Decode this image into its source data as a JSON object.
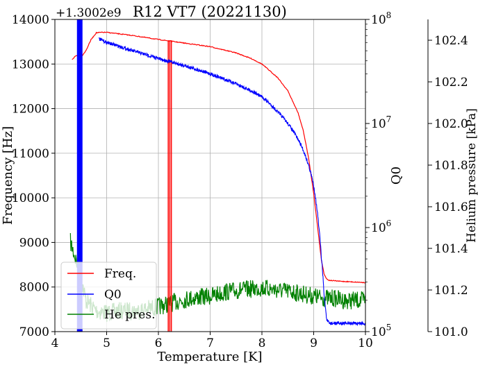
{
  "chart_data": {
    "type": "line",
    "title": "R12 VT7 (20221130)",
    "offset_text": "+1.3002e9",
    "xlabel": "Temperature [K]",
    "xlim": [
      4,
      10
    ],
    "xticks": [
      4,
      5,
      6,
      7,
      8,
      9,
      10
    ],
    "y_left": {
      "label": "Frequency [Hz]",
      "lim": [
        7000,
        14000
      ],
      "ticks": [
        7000,
        8000,
        9000,
        10000,
        11000,
        12000,
        13000,
        14000
      ]
    },
    "y_right1": {
      "label": "Q0",
      "scale": "log",
      "lim": [
        100000,
        100000000
      ],
      "ticks": [
        {
          "value": 100000,
          "base": "10",
          "exp": "5"
        },
        {
          "value": 1000000,
          "base": "10",
          "exp": "6"
        },
        {
          "value": 10000000,
          "base": "10",
          "exp": "7"
        },
        {
          "value": 100000000,
          "base": "10",
          "exp": "8"
        }
      ]
    },
    "y_right2": {
      "label": "Helium pressure [kPa]",
      "lim": [
        101.0,
        102.5
      ],
      "ticks": [
        "101.0",
        "101.2",
        "101.4",
        "101.6",
        "101.8",
        "102.0",
        "102.2",
        "102.4"
      ]
    },
    "grid": true,
    "legend_position": "lower-left",
    "series": [
      {
        "name": "Freq.",
        "axis": "left",
        "color": "#ff0000",
        "x": [
          4.33,
          4.4,
          4.45,
          4.5,
          4.6,
          4.7,
          4.8,
          4.9,
          5.0,
          5.5,
          6.0,
          6.5,
          7.0,
          7.5,
          7.8,
          8.0,
          8.3,
          8.5,
          8.7,
          8.8,
          8.9,
          9.0,
          9.05,
          9.1,
          9.15,
          9.2,
          9.25,
          9.3,
          9.5,
          10.0
        ],
        "y": [
          13100,
          13180,
          13200,
          13150,
          13300,
          13550,
          13700,
          13710,
          13710,
          13640,
          13550,
          13470,
          13390,
          13250,
          13120,
          13000,
          12700,
          12400,
          11900,
          11500,
          10900,
          10100,
          9600,
          9100,
          8600,
          8300,
          8180,
          8150,
          8130,
          8100
        ]
      },
      {
        "name": "Q0",
        "axis": "right1",
        "color": "#0000ff",
        "x": [
          4.85,
          5.0,
          5.5,
          6.0,
          6.5,
          7.0,
          7.5,
          7.8,
          8.0,
          8.3,
          8.5,
          8.7,
          8.8,
          8.9,
          9.0,
          9.05,
          9.1,
          9.15,
          9.2,
          9.25,
          9.3,
          9.5,
          10.0
        ],
        "y": [
          65000000,
          60000000,
          50000000,
          42000000,
          36000000,
          30000000,
          24000000,
          20500000,
          18000000,
          13000000,
          10000000,
          7000000,
          5500000,
          4000000,
          2500000,
          1700000,
          1000000,
          500000,
          220000,
          130000,
          120000,
          120000,
          120000
        ]
      },
      {
        "name": "He pres.",
        "axis": "right2",
        "color": "#008000",
        "x": [
          4.3,
          4.4,
          4.5,
          4.6,
          4.8,
          5.0,
          5.3,
          5.6,
          6.0,
          6.3,
          6.6,
          7.0,
          7.3,
          7.6,
          8.0,
          8.3,
          8.6,
          9.0,
          9.2,
          9.4,
          9.6,
          9.8,
          10.0
        ],
        "y": [
          101.43,
          101.35,
          101.26,
          101.15,
          101.1,
          101.09,
          101.1,
          101.1,
          101.12,
          101.14,
          101.16,
          101.17,
          101.19,
          101.2,
          101.21,
          101.2,
          101.19,
          101.17,
          101.16,
          101.16,
          101.15,
          101.15,
          101.15
        ]
      }
    ],
    "vertical_spikes": [
      {
        "series": "Q0",
        "x": [
          4.44,
          4.46,
          4.48,
          4.5,
          4.52
        ]
      },
      {
        "series": "Freq.",
        "x": [
          6.19,
          6.22,
          6.25
        ]
      }
    ]
  }
}
